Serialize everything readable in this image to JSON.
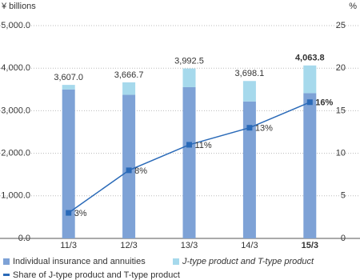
{
  "chart_data": {
    "type": "bar",
    "stacked": true,
    "y_label": "¥ billions",
    "y2_label": "%",
    "categories": [
      "11/3",
      "12/3",
      "13/3",
      "14/3",
      "15/3"
    ],
    "series": [
      {
        "name": "Individual insurance and annuities",
        "color": "#7ea2d6",
        "values": [
          3498.8,
          3373.4,
          3553.3,
          3217.3,
          3413.6
        ]
      },
      {
        "name": "J-type product and T-type product",
        "color": "#a6d9ec",
        "values": [
          108.2,
          293.3,
          439.2,
          480.8,
          650.2
        ]
      },
      {
        "name": "Share of J-type product and T-type product",
        "type": "line",
        "axis": "y2",
        "color": "#2a6ab8",
        "values": [
          3,
          8,
          11,
          13,
          16
        ],
        "value_labels": [
          "3%",
          "8%",
          "11%",
          "13%",
          "16%"
        ]
      }
    ],
    "total_values": [
      3607.0,
      3666.7,
      3992.5,
      3698.1,
      4063.8
    ],
    "total_labels": [
      "3,607.0",
      "3,666.7",
      "3,992.5",
      "3,698.1",
      "4,063.8"
    ],
    "ylim": [
      0,
      5000
    ],
    "yticks": [
      {
        "value": 0,
        "label": "0.0"
      },
      {
        "value": 1000,
        "label": "1,000.0"
      },
      {
        "value": 2000,
        "label": "2,000.0"
      },
      {
        "value": 3000,
        "label": "3,000.0"
      },
      {
        "value": 4000,
        "label": "4,000.0"
      },
      {
        "value": 5000,
        "label": "5,000.0"
      }
    ],
    "y2lim": [
      0,
      25
    ],
    "y2ticks": [
      0,
      5,
      10,
      15,
      20,
      25
    ],
    "grid": true
  }
}
